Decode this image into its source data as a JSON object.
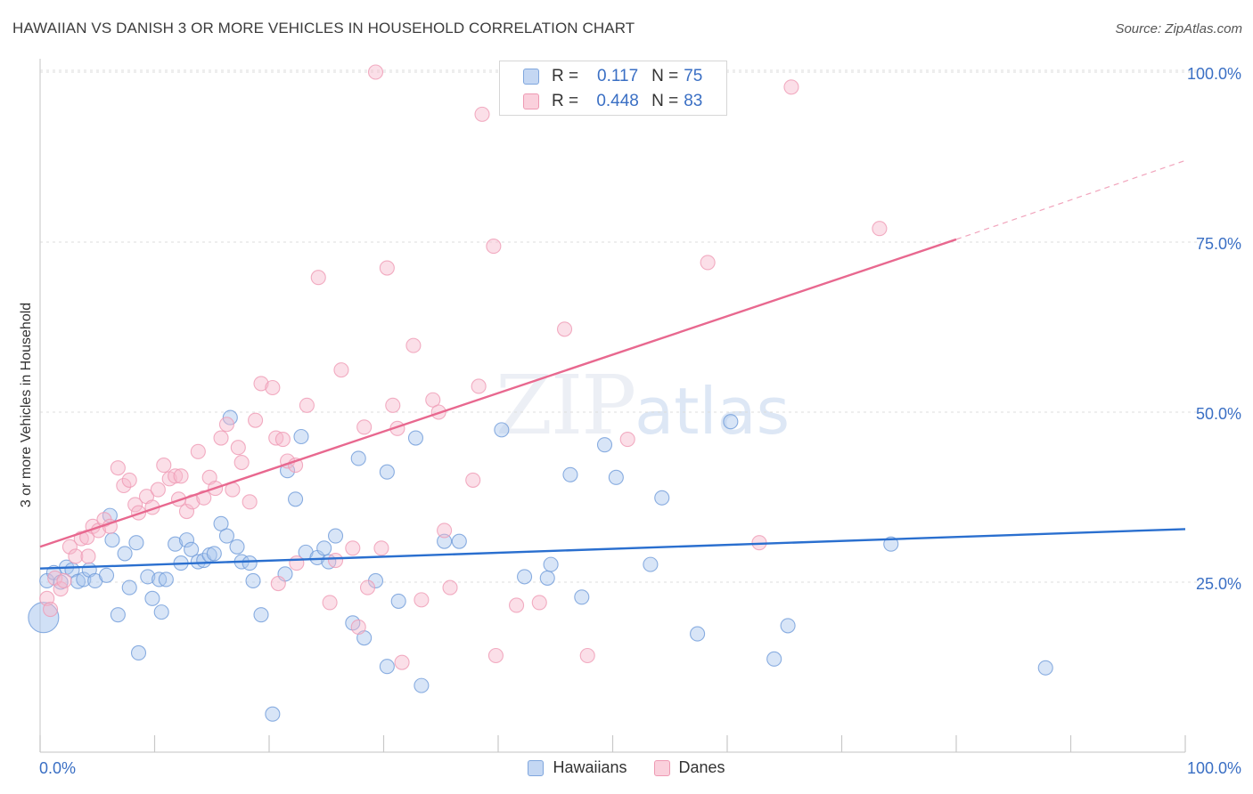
{
  "title": "HAWAIIAN VS DANISH 3 OR MORE VEHICLES IN HOUSEHOLD CORRELATION CHART",
  "source": "Source: ZipAtlas.com",
  "watermark": {
    "zip": "ZIP",
    "atlas": "atlas"
  },
  "legend_top": [
    {
      "r_label": "R =",
      "r_value": "0.117",
      "n_label": "N =",
      "n_value": "75",
      "color": "#a9c6ee"
    },
    {
      "r_label": "R =",
      "r_value": "0.448",
      "n_label": "N =",
      "n_value": "83",
      "color": "#f6b8cb"
    }
  ],
  "legend_bottom": [
    {
      "label": "Hawaiians",
      "color": "#a9c6ee"
    },
    {
      "label": "Danes",
      "color": "#f6b8cb"
    }
  ],
  "chart_data": {
    "type": "scatter",
    "xlabel": "",
    "ylabel": "3 or more Vehicles in Household",
    "xlim": [
      0,
      100
    ],
    "ylim": [
      0,
      100
    ],
    "x_tick_labels": [
      "0.0%",
      "100.0%"
    ],
    "y_tick_labels": [
      {
        "value": 25,
        "label": "25.0%"
      },
      {
        "value": 50,
        "label": "50.0%"
      },
      {
        "value": 75,
        "label": "75.0%"
      },
      {
        "value": 100,
        "label": "100.0%"
      }
    ],
    "series": [
      {
        "name": "Hawaiians",
        "color": "#6f9bd9",
        "fill": "#a9c6ee",
        "trend": {
          "x0": 0,
          "y0": 27.0,
          "x1": 100,
          "y1": 32.8,
          "color": "#2a6fcf"
        },
        "points": [
          [
            0.6,
            25.2
          ],
          [
            1.2,
            26.4
          ],
          [
            1.8,
            25.0
          ],
          [
            2.3,
            27.2
          ],
          [
            2.8,
            26.8
          ],
          [
            3.3,
            25.1
          ],
          [
            3.8,
            25.4
          ],
          [
            4.3,
            26.8
          ],
          [
            4.8,
            25.2
          ],
          [
            5.8,
            26.0
          ],
          [
            6.1,
            34.8
          ],
          [
            6.3,
            31.2
          ],
          [
            6.8,
            20.2
          ],
          [
            7.4,
            29.2
          ],
          [
            7.8,
            24.2
          ],
          [
            8.4,
            30.8
          ],
          [
            8.6,
            14.6
          ],
          [
            9.4,
            25.8
          ],
          [
            9.8,
            22.6
          ],
          [
            10.4,
            25.4
          ],
          [
            10.6,
            20.6
          ],
          [
            11.0,
            25.4
          ],
          [
            11.8,
            30.6
          ],
          [
            12.3,
            27.8
          ],
          [
            12.8,
            31.2
          ],
          [
            13.2,
            29.8
          ],
          [
            13.8,
            28.0
          ],
          [
            14.3,
            28.2
          ],
          [
            14.8,
            29.0
          ],
          [
            15.2,
            29.2
          ],
          [
            15.8,
            33.6
          ],
          [
            16.3,
            31.8
          ],
          [
            16.6,
            49.2
          ],
          [
            17.2,
            30.2
          ],
          [
            17.6,
            28.0
          ],
          [
            18.3,
            27.8
          ],
          [
            18.6,
            25.2
          ],
          [
            19.3,
            20.2
          ],
          [
            20.3,
            5.6
          ],
          [
            21.4,
            26.2
          ],
          [
            21.6,
            41.4
          ],
          [
            22.3,
            37.2
          ],
          [
            22.8,
            46.4
          ],
          [
            23.2,
            29.4
          ],
          [
            24.2,
            28.6
          ],
          [
            24.8,
            30.0
          ],
          [
            25.2,
            28.0
          ],
          [
            25.8,
            31.8
          ],
          [
            27.3,
            19.0
          ],
          [
            27.8,
            43.2
          ],
          [
            28.3,
            16.8
          ],
          [
            29.3,
            25.2
          ],
          [
            30.3,
            41.2
          ],
          [
            30.3,
            12.6
          ],
          [
            31.3,
            22.2
          ],
          [
            32.8,
            46.2
          ],
          [
            33.3,
            9.8
          ],
          [
            35.3,
            31.0
          ],
          [
            36.6,
            31.0
          ],
          [
            40.3,
            47.4
          ],
          [
            42.3,
            25.8
          ],
          [
            44.3,
            25.6
          ],
          [
            44.6,
            27.6
          ],
          [
            46.3,
            40.8
          ],
          [
            47.3,
            22.8
          ],
          [
            49.3,
            45.2
          ],
          [
            50.3,
            40.4
          ],
          [
            53.3,
            27.6
          ],
          [
            54.3,
            37.4
          ],
          [
            57.4,
            17.4
          ],
          [
            60.3,
            48.6
          ],
          [
            65.3,
            18.6
          ],
          [
            64.1,
            13.7
          ],
          [
            74.3,
            30.6
          ],
          [
            87.8,
            12.4
          ]
        ],
        "big_point": [
          0.3,
          19.8
        ]
      },
      {
        "name": "Danes",
        "color": "#ef9ab4",
        "fill": "#f6b8cb",
        "trend": {
          "x0": 0,
          "y0": 30.2,
          "x1": 80,
          "y1": 75.4,
          "dash_x1": 100,
          "dash_y1": 87.0,
          "color": "#e8688f"
        },
        "points": [
          [
            0.6,
            22.6
          ],
          [
            1.3,
            25.6
          ],
          [
            1.8,
            24.0
          ],
          [
            2.6,
            30.2
          ],
          [
            3.1,
            28.8
          ],
          [
            3.6,
            31.4
          ],
          [
            4.1,
            31.6
          ],
          [
            4.6,
            33.2
          ],
          [
            5.1,
            32.6
          ],
          [
            5.6,
            34.2
          ],
          [
            6.1,
            33.2
          ],
          [
            6.8,
            41.8
          ],
          [
            7.3,
            39.2
          ],
          [
            7.8,
            40.0
          ],
          [
            8.3,
            36.4
          ],
          [
            8.6,
            35.2
          ],
          [
            9.3,
            37.6
          ],
          [
            9.8,
            36.0
          ],
          [
            10.3,
            38.6
          ],
          [
            10.8,
            42.2
          ],
          [
            11.3,
            40.2
          ],
          [
            11.8,
            40.6
          ],
          [
            12.3,
            40.6
          ],
          [
            12.8,
            35.4
          ],
          [
            13.3,
            36.8
          ],
          [
            13.8,
            44.2
          ],
          [
            14.3,
            37.4
          ],
          [
            14.8,
            40.4
          ],
          [
            15.3,
            38.8
          ],
          [
            15.8,
            46.2
          ],
          [
            16.3,
            48.2
          ],
          [
            16.8,
            38.6
          ],
          [
            17.3,
            44.8
          ],
          [
            17.6,
            42.6
          ],
          [
            18.3,
            36.8
          ],
          [
            18.8,
            48.8
          ],
          [
            19.3,
            54.2
          ],
          [
            20.3,
            53.6
          ],
          [
            20.6,
            46.2
          ],
          [
            21.2,
            46.0
          ],
          [
            21.6,
            42.8
          ],
          [
            22.3,
            42.2
          ],
          [
            23.3,
            51.0
          ],
          [
            24.3,
            69.8
          ],
          [
            25.3,
            22.0
          ],
          [
            25.8,
            28.2
          ],
          [
            26.3,
            56.2
          ],
          [
            27.3,
            30.0
          ],
          [
            27.8,
            18.4
          ],
          [
            28.3,
            47.8
          ],
          [
            28.6,
            24.2
          ],
          [
            29.8,
            30.0
          ],
          [
            30.3,
            71.2
          ],
          [
            30.8,
            51.0
          ],
          [
            31.2,
            47.6
          ],
          [
            31.6,
            13.2
          ],
          [
            32.6,
            59.8
          ],
          [
            33.3,
            22.4
          ],
          [
            34.3,
            51.8
          ],
          [
            34.8,
            50.0
          ],
          [
            35.3,
            32.6
          ],
          [
            35.8,
            24.2
          ],
          [
            37.8,
            40.0
          ],
          [
            38.3,
            53.8
          ],
          [
            38.6,
            93.8
          ],
          [
            39.6,
            74.4
          ],
          [
            39.8,
            14.2
          ],
          [
            41.6,
            21.6
          ],
          [
            43.6,
            22.0
          ],
          [
            45.8,
            62.2
          ],
          [
            47.8,
            14.2
          ],
          [
            51.3,
            46.0
          ],
          [
            58.3,
            72.0
          ],
          [
            62.8,
            30.8
          ],
          [
            65.6,
            97.8
          ],
          [
            73.3,
            77.0
          ],
          [
            29.3,
            100.0
          ],
          [
            0.9,
            21.0
          ],
          [
            2.1,
            25.2
          ],
          [
            4.2,
            28.8
          ],
          [
            22.4,
            27.8
          ],
          [
            20.8,
            24.8
          ],
          [
            12.1,
            37.2
          ]
        ]
      }
    ]
  }
}
